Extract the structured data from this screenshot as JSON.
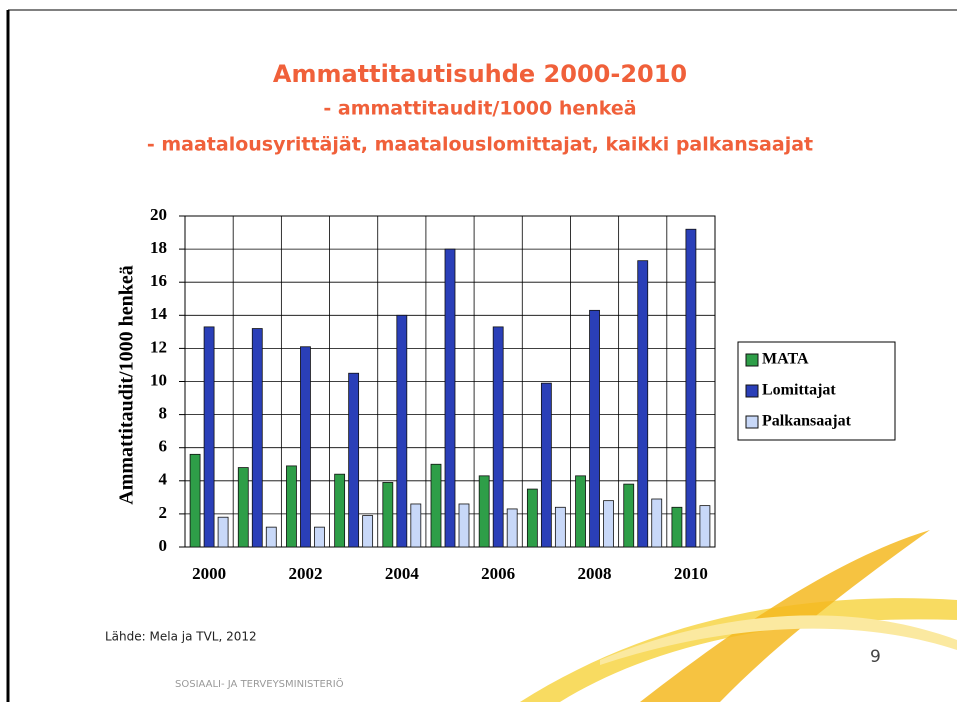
{
  "chart_data": {
    "type": "bar",
    "title": "Ammattitautisuhde 2000-2010",
    "subtitle": [
      "- ammattitaudit/1000 henkeä",
      "- maatalousyrittäjät, maatalouslomittajat, kaikki palkansaajat"
    ],
    "y_label": "Ammattitaudit/1000 henkeä",
    "categories": [
      "2000",
      null,
      "2002",
      null,
      "2004",
      null,
      "2006",
      null,
      "2008",
      null,
      "2010"
    ],
    "series": [
      {
        "name": "MATA",
        "color": "#2e9e48",
        "values": [
          5.6,
          4.8,
          4.9,
          4.4,
          3.9,
          5.0,
          4.3,
          3.5,
          4.3,
          3.8,
          2.4
        ]
      },
      {
        "name": "Lomittajat",
        "color": "#2a3fb8",
        "values": [
          13.3,
          13.2,
          12.1,
          10.5,
          14.0,
          18.0,
          13.3,
          9.9,
          14.3,
          17.3,
          19.2
        ]
      },
      {
        "name": "Palkansaajat",
        "color": "#c8d8f8",
        "values": [
          1.8,
          1.2,
          1.2,
          1.9,
          2.6,
          2.6,
          2.3,
          2.4,
          2.8,
          2.9,
          2.5
        ]
      }
    ],
    "ylim": [
      0,
      20
    ],
    "yticks": [
      0,
      2,
      4,
      6,
      8,
      10,
      12,
      14,
      16,
      18,
      20
    ],
    "grid": true,
    "legend": "right"
  },
  "slide": {
    "source": "Lähde: Mela ja TVL, 2012",
    "page_number": "9",
    "organization": "SOSIAALI- JA TERVEYSMINISTERIÖ"
  }
}
